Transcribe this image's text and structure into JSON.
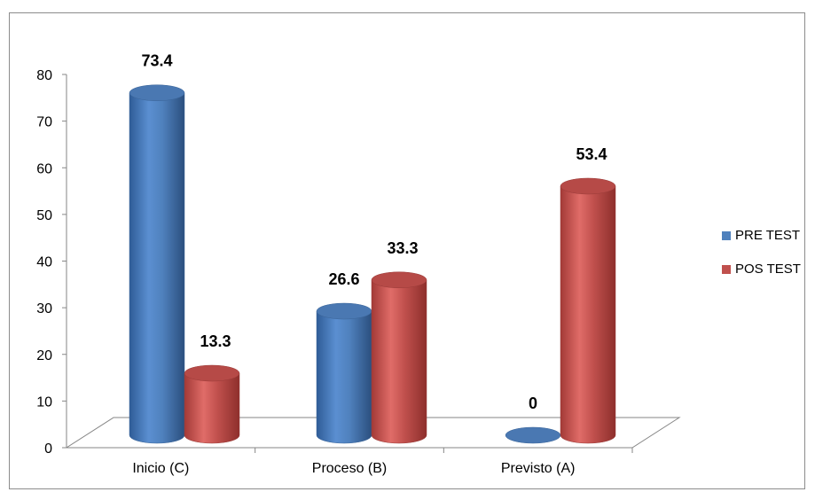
{
  "chart_data": {
    "type": "bar",
    "title": "",
    "xlabel": "",
    "ylabel": "",
    "categories": [
      "Inicio (C)",
      "Proceso (B)",
      "Previsto (A)"
    ],
    "series": [
      {
        "name": "PRE TEST",
        "values": [
          73.4,
          26.6,
          0
        ],
        "labels": [
          "73.4",
          "26.6",
          "0"
        ]
      },
      {
        "name": "POS TEST",
        "values": [
          13.3,
          33.3,
          53.4
        ],
        "labels": [
          "13.3",
          "33.3",
          "53.4"
        ]
      }
    ],
    "ylim": [
      0,
      80
    ],
    "yticks": [
      "0",
      "10",
      "20",
      "30",
      "40",
      "50",
      "60",
      "70",
      "80"
    ],
    "legend": "right",
    "style": "3d-cylinder",
    "colors": {
      "PRE TEST": "#4f81bd",
      "POS TEST": "#c0504d"
    }
  }
}
